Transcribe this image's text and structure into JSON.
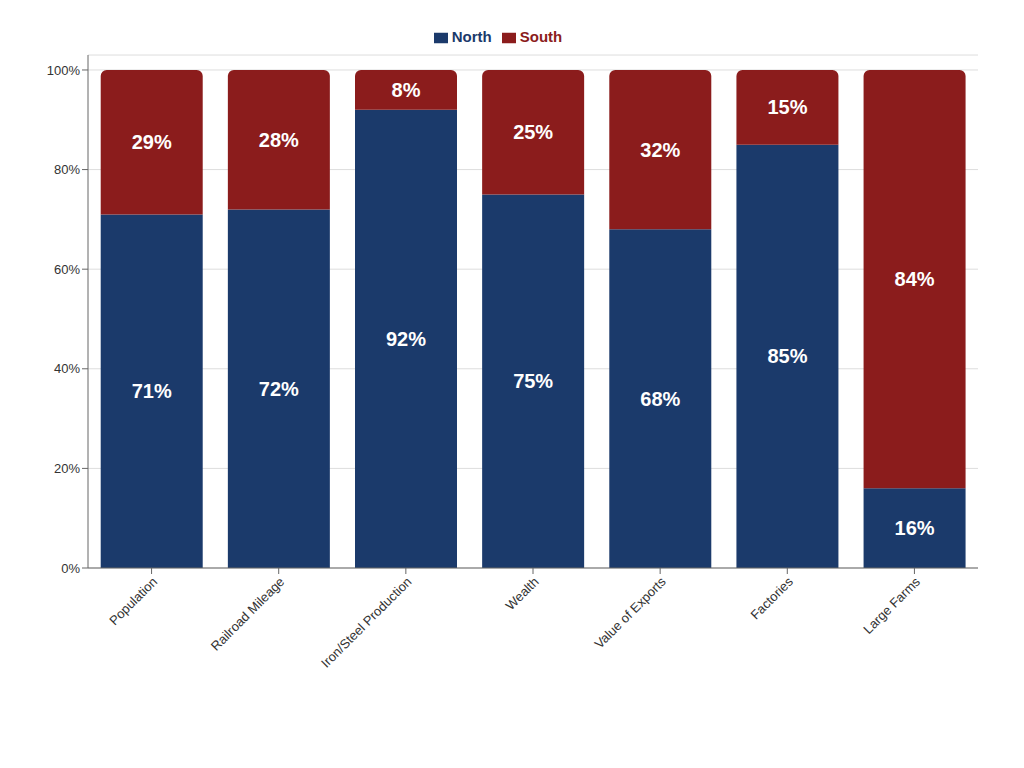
{
  "chart_data": {
    "type": "bar",
    "stacked": true,
    "categories": [
      "Population",
      "Railroad Mileage",
      "Iron/Steel Production",
      "Wealth",
      "Value of Exports",
      "Factories",
      "Large Farms"
    ],
    "series": [
      {
        "name": "North",
        "color": "#1b3a6b",
        "values": [
          71,
          72,
          92,
          75,
          68,
          85,
          16
        ],
        "value_labels": [
          "71%",
          "72%",
          "92%",
          "75%",
          "68%",
          "85%",
          "16%"
        ]
      },
      {
        "name": "South",
        "color": "#8b1c1c",
        "values": [
          29,
          28,
          8,
          25,
          32,
          15,
          84
        ],
        "value_labels": [
          "29%",
          "28%",
          "8%",
          "25%",
          "32%",
          "15%",
          "84%"
        ]
      }
    ],
    "ylim": [
      0,
      103
    ],
    "yticks": [
      {
        "value": 0,
        "label": "0%"
      },
      {
        "value": 20,
        "label": "20%"
      },
      {
        "value": 40,
        "label": "40%"
      },
      {
        "value": 60,
        "label": "60%"
      },
      {
        "value": 80,
        "label": "80%"
      },
      {
        "value": 100,
        "label": "100%"
      }
    ],
    "grid": true,
    "legend": "top",
    "data_labels": true
  }
}
